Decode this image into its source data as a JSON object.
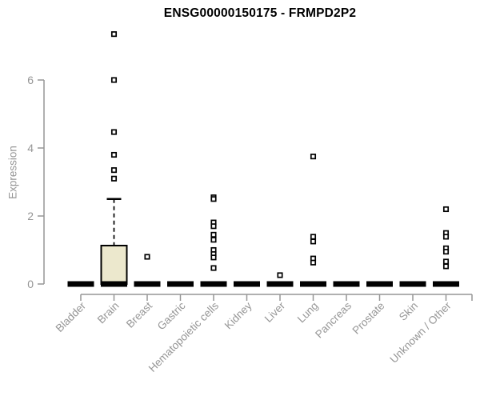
{
  "chart_data": {
    "type": "boxplot",
    "title": "ENSG00000150175 - FRMPD2P2",
    "ylabel": "Expression",
    "xlabel": "",
    "yticks": [
      0,
      2,
      4,
      6
    ],
    "ylim": [
      0,
      7.5
    ],
    "grid": false,
    "legend": "none",
    "categories": [
      "Bladder",
      "Brain",
      "Breast",
      "Gastric",
      "Hematopoietic cells",
      "Kidney",
      "Liver",
      "Lung",
      "Pancreas",
      "Prostate",
      "Skin",
      "Unknown / Other"
    ],
    "boxes": [
      {
        "category": "Bladder",
        "q1": 0,
        "median": 0,
        "q3": 0,
        "whisker_low": 0,
        "whisker_high": 0,
        "outliers": []
      },
      {
        "category": "Brain",
        "q1": 0,
        "median": 0,
        "q3": 1.13,
        "whisker_low": 0,
        "whisker_high": 2.5,
        "outliers": [
          7.35,
          6.0,
          4.47,
          3.8,
          3.35,
          3.1
        ]
      },
      {
        "category": "Breast",
        "q1": 0,
        "median": 0,
        "q3": 0,
        "whisker_low": 0,
        "whisker_high": 0,
        "outliers": [
          0.8
        ]
      },
      {
        "category": "Gastric",
        "q1": 0,
        "median": 0,
        "q3": 0,
        "whisker_low": 0,
        "whisker_high": 0,
        "outliers": []
      },
      {
        "category": "Hematopoietic cells",
        "q1": 0,
        "median": 0,
        "q3": 0,
        "whisker_low": 0,
        "whisker_high": 0,
        "outliers": [
          2.55,
          2.5,
          1.81,
          1.7,
          1.45,
          1.3,
          1.0,
          0.88,
          0.78,
          0.47
        ]
      },
      {
        "category": "Kidney",
        "q1": 0,
        "median": 0,
        "q3": 0,
        "whisker_low": 0,
        "whisker_high": 0,
        "outliers": []
      },
      {
        "category": "Liver",
        "q1": 0,
        "median": 0,
        "q3": 0,
        "whisker_low": 0,
        "whisker_high": 0,
        "outliers": [
          0.26
        ]
      },
      {
        "category": "Lung",
        "q1": 0,
        "median": 0,
        "q3": 0,
        "whisker_low": 0,
        "whisker_high": 0,
        "outliers": [
          3.75,
          1.39,
          1.25,
          0.75,
          0.63
        ]
      },
      {
        "category": "Pancreas",
        "q1": 0,
        "median": 0,
        "q3": 0,
        "whisker_low": 0,
        "whisker_high": 0,
        "outliers": []
      },
      {
        "category": "Prostate",
        "q1": 0,
        "median": 0,
        "q3": 0,
        "whisker_low": 0,
        "whisker_high": 0,
        "outliers": []
      },
      {
        "category": "Skin",
        "q1": 0,
        "median": 0,
        "q3": 0,
        "whisker_low": 0,
        "whisker_high": 0,
        "outliers": []
      },
      {
        "category": "Unknown / Other",
        "q1": 0,
        "median": 0,
        "q3": 0,
        "whisker_low": 0,
        "whisker_high": 0,
        "outliers": [
          2.2,
          1.5,
          1.39,
          1.05,
          0.95,
          0.66,
          0.52
        ]
      }
    ],
    "colors": {
      "box_fill": "#ece8cd",
      "box_border": "#000000",
      "zero_bar": "#000000",
      "outlier_stroke": "#000000",
      "outlier_fill": "#ffffff",
      "axis": "#969696",
      "title": "#000000"
    }
  }
}
